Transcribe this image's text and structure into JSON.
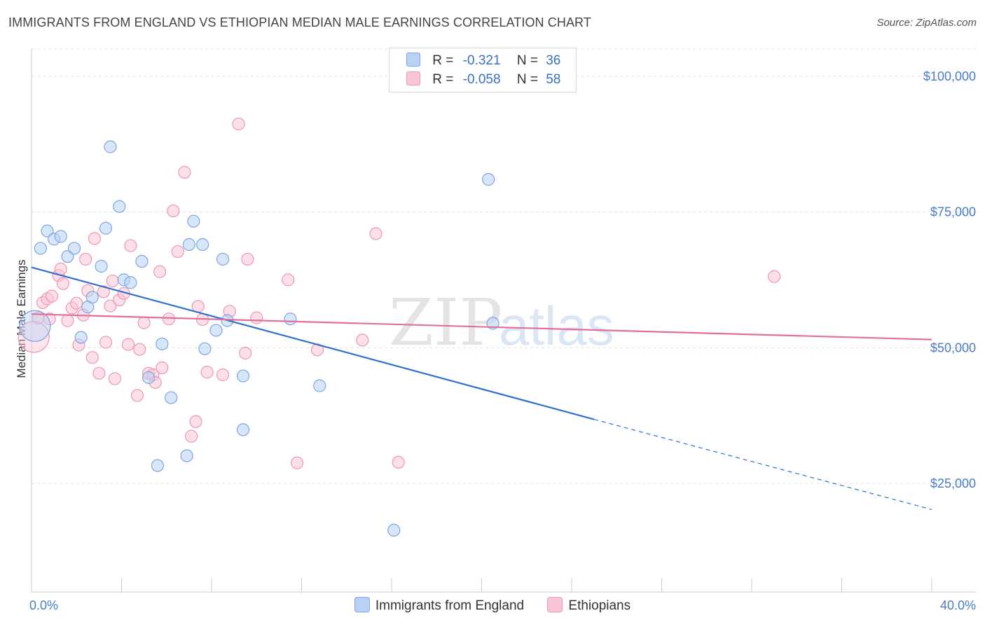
{
  "title": "IMMIGRANTS FROM ENGLAND VS ETHIOPIAN MEDIAN MALE EARNINGS CORRELATION CHART",
  "source": "Source: ZipAtlas.com",
  "colors": {
    "blue_fill": "#b8d1f5",
    "blue_stroke": "#7ea6e0",
    "blue_line": "#2f6fd0",
    "pink_fill": "#f9c6d6",
    "pink_stroke": "#ee97b3",
    "pink_line": "#e0709a",
    "tick_text": "#4a7cc9",
    "grid": "#dddddd"
  },
  "legend": {
    "rows": [
      {
        "r_label": "R =",
        "r_value": "-0.321",
        "n_label": "N =",
        "n_value": "36"
      },
      {
        "r_label": "R =",
        "r_value": "-0.058",
        "n_label": "N =",
        "n_value": "58"
      }
    ]
  },
  "chart_data": {
    "type": "scatter",
    "xlabel": "",
    "ylabel": "Median Male Earnings",
    "xlim": [
      0,
      40
    ],
    "ylim": [
      5000,
      105000
    ],
    "x_tick_labels": {
      "min": "0.0%",
      "max": "40.0%"
    },
    "y_ticks": [
      {
        "value": 25000,
        "label": "$25,000"
      },
      {
        "value": 50000,
        "label": "$50,000"
      },
      {
        "value": 75000,
        "label": "$75,000"
      },
      {
        "value": 100000,
        "label": "$100,000"
      }
    ],
    "grid": "horizontal dashed",
    "watermark": {
      "zip": "ZIP",
      "atlas": "atlas"
    },
    "series": [
      {
        "name": "Immigrants from England",
        "points": [
          [
            0.15,
            54000
          ],
          [
            0.4,
            68300
          ],
          [
            0.7,
            71500
          ],
          [
            1.0,
            70000
          ],
          [
            1.3,
            70500
          ],
          [
            1.6,
            66800
          ],
          [
            1.9,
            68300
          ],
          [
            2.2,
            51900
          ],
          [
            2.5,
            57500
          ],
          [
            2.7,
            59300
          ],
          [
            3.1,
            65000
          ],
          [
            3.3,
            72000
          ],
          [
            3.5,
            87000
          ],
          [
            3.9,
            76000
          ],
          [
            4.1,
            62500
          ],
          [
            4.4,
            62000
          ],
          [
            4.9,
            65900
          ],
          [
            5.2,
            44500
          ],
          [
            5.6,
            28300
          ],
          [
            5.8,
            50700
          ],
          [
            6.2,
            40800
          ],
          [
            6.9,
            30100
          ],
          [
            7.0,
            69000
          ],
          [
            7.2,
            73300
          ],
          [
            7.6,
            69000
          ],
          [
            7.7,
            49800
          ],
          [
            8.2,
            53200
          ],
          [
            8.5,
            66300
          ],
          [
            8.7,
            55000
          ],
          [
            9.4,
            34900
          ],
          [
            9.4,
            44800
          ],
          [
            11.5,
            55300
          ],
          [
            12.8,
            43000
          ],
          [
            16.1,
            16400
          ],
          [
            20.3,
            81000
          ],
          [
            20.5,
            54500
          ]
        ],
        "trend": {
          "x0": 0,
          "y0": 64800,
          "x1": 25,
          "y1": 36800,
          "dash_to_x": 40,
          "dash_to_y": 20200
        }
      },
      {
        "name": "Ethiopians",
        "points": [
          [
            0.1,
            52000
          ],
          [
            0.3,
            55500
          ],
          [
            0.5,
            58300
          ],
          [
            0.7,
            59000
          ],
          [
            0.8,
            55300
          ],
          [
            0.9,
            59500
          ],
          [
            1.2,
            63300
          ],
          [
            1.3,
            64500
          ],
          [
            1.4,
            61800
          ],
          [
            1.6,
            55000
          ],
          [
            1.8,
            57300
          ],
          [
            2.0,
            58200
          ],
          [
            2.1,
            50500
          ],
          [
            2.3,
            56000
          ],
          [
            2.4,
            66300
          ],
          [
            2.5,
            60500
          ],
          [
            2.7,
            48200
          ],
          [
            2.8,
            70100
          ],
          [
            3.0,
            45300
          ],
          [
            3.2,
            60300
          ],
          [
            3.3,
            51000
          ],
          [
            3.5,
            57700
          ],
          [
            3.6,
            62300
          ],
          [
            3.7,
            44300
          ],
          [
            3.9,
            58800
          ],
          [
            4.1,
            60000
          ],
          [
            4.3,
            50600
          ],
          [
            4.4,
            68800
          ],
          [
            4.7,
            41200
          ],
          [
            4.8,
            49700
          ],
          [
            5.0,
            54600
          ],
          [
            5.2,
            45300
          ],
          [
            5.4,
            45000
          ],
          [
            5.5,
            43600
          ],
          [
            5.7,
            64000
          ],
          [
            5.8,
            46300
          ],
          [
            6.1,
            55300
          ],
          [
            6.3,
            75200
          ],
          [
            6.5,
            67700
          ],
          [
            6.8,
            82300
          ],
          [
            7.1,
            33700
          ],
          [
            7.3,
            36400
          ],
          [
            7.4,
            57600
          ],
          [
            7.6,
            55200
          ],
          [
            7.8,
            45500
          ],
          [
            8.5,
            45000
          ],
          [
            8.8,
            56700
          ],
          [
            9.2,
            91200
          ],
          [
            9.5,
            49000
          ],
          [
            9.6,
            66300
          ],
          [
            10.0,
            55500
          ],
          [
            11.4,
            62500
          ],
          [
            11.8,
            28800
          ],
          [
            12.7,
            49600
          ],
          [
            14.7,
            51400
          ],
          [
            15.3,
            71000
          ],
          [
            16.3,
            28900
          ],
          [
            33.0,
            63100
          ]
        ],
        "trend": {
          "x0": 0,
          "y0": 56200,
          "x1": 40,
          "y1": 51500
        }
      }
    ]
  }
}
